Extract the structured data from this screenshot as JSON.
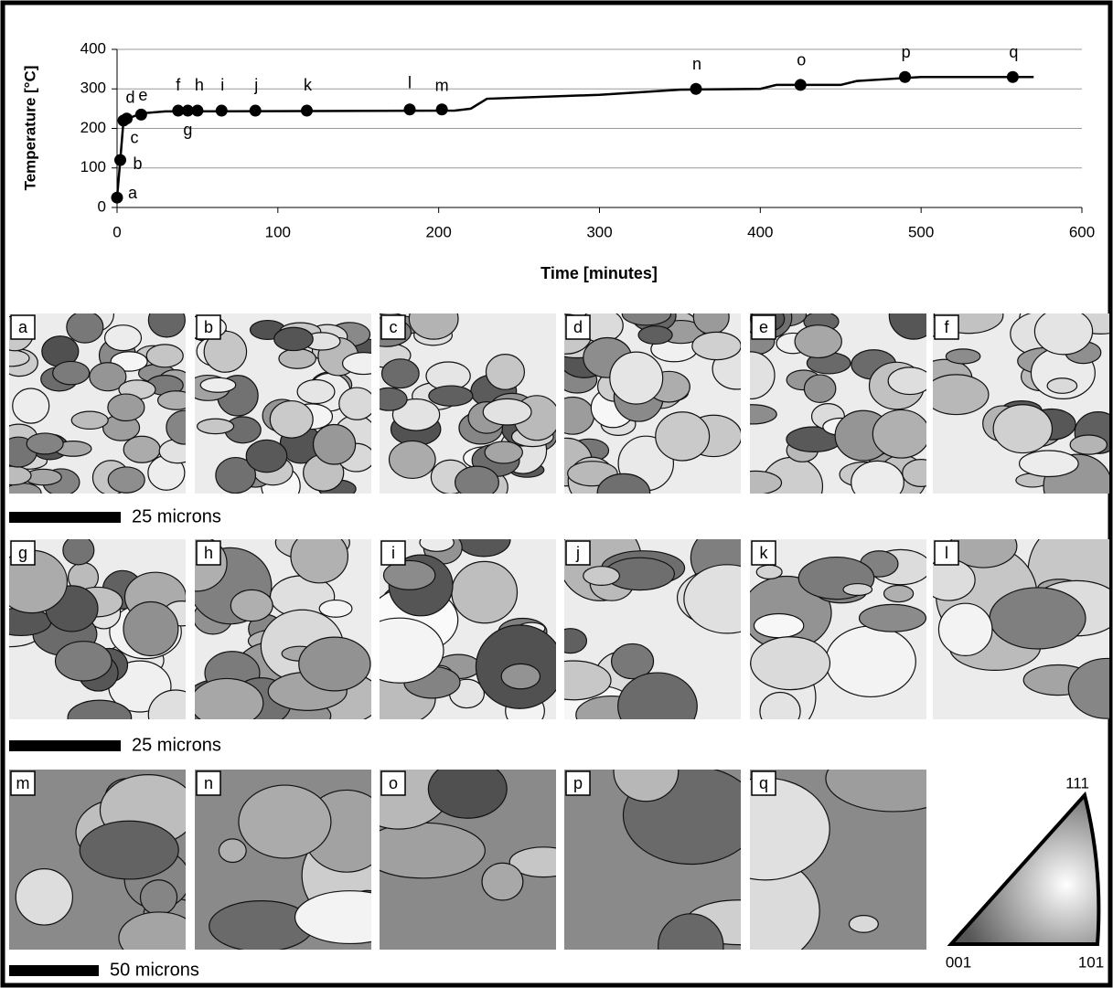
{
  "chart_data": {
    "type": "line",
    "x_label": "Time [minutes]",
    "y_label": "Temperature [°C]",
    "x": [
      0,
      2,
      4,
      10,
      15,
      30,
      210,
      220,
      230,
      300,
      350,
      400,
      410,
      450,
      460,
      480,
      500,
      570
    ],
    "series": [
      {
        "color": "#000000",
        "values": [
          25,
          120,
          220,
          230,
          238,
          243,
          245,
          250,
          275,
          285,
          298,
          300,
          310,
          310,
          320,
          325,
          330,
          330
        ]
      }
    ],
    "points": {
      "color": "#000000",
      "labels": [
        "a",
        "b",
        "c",
        "d",
        "e",
        "f",
        "g",
        "h",
        "i",
        "j",
        "k",
        "l",
        "m",
        "n",
        "o",
        "p",
        "q"
      ],
      "x": [
        0,
        2,
        4,
        6,
        15,
        38,
        44,
        50,
        65,
        86,
        118,
        182,
        202,
        360,
        425,
        490,
        557
      ],
      "values": [
        25,
        120,
        220,
        225,
        235,
        245,
        245,
        245,
        245,
        245,
        245,
        248,
        248,
        300,
        310,
        330,
        330
      ]
    },
    "xlim": [
      0,
      600
    ],
    "xticks": [
      0,
      100,
      200,
      300,
      400,
      500,
      600
    ],
    "ylim": [
      0,
      400
    ],
    "yticks": [
      0,
      100,
      200,
      300,
      400
    ],
    "grid": true
  },
  "panels": [
    "a",
    "b",
    "c",
    "d",
    "e",
    "f",
    "g",
    "h",
    "i",
    "j",
    "k",
    "l",
    "m",
    "n",
    "o",
    "p",
    "q"
  ],
  "scale_bars": [
    "25 microns",
    "25 microns",
    "50 microns"
  ],
  "ipf_key": {
    "top": "111",
    "left": "001",
    "right": "101"
  }
}
